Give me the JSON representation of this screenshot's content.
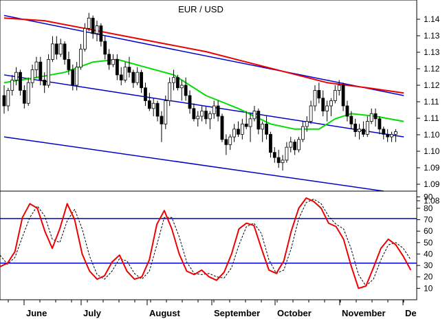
{
  "chart_data": [
    {
      "type": "candlestick",
      "title": "EUR / USD",
      "y_ticks": [
        "1.14",
        "1.13",
        "1.13",
        "1.12",
        "1.12",
        "1.11",
        "1.11",
        "1.10",
        "1.10",
        "1.09",
        "1.09",
        "1.08"
      ],
      "ylim": [
        1.077,
        1.151
      ],
      "colors": {
        "up": "#ffffff",
        "down": "#000000",
        "ma_fast": "#00dd00",
        "ma_slow": "#ee0000",
        "channel": "#0000cc"
      },
      "candles": [
        [
          1.114,
          1.118,
          1.107,
          1.11
        ],
        [
          1.11,
          1.117,
          1.108,
          1.116
        ],
        [
          1.116,
          1.122,
          1.114,
          1.12
        ],
        [
          1.12,
          1.125,
          1.118,
          1.123
        ],
        [
          1.123,
          1.124,
          1.114,
          1.116
        ],
        [
          1.116,
          1.118,
          1.109,
          1.111
        ],
        [
          1.111,
          1.121,
          1.11,
          1.119
        ],
        [
          1.119,
          1.126,
          1.117,
          1.124
        ],
        [
          1.124,
          1.129,
          1.121,
          1.127
        ],
        [
          1.127,
          1.129,
          1.118,
          1.12
        ],
        [
          1.12,
          1.123,
          1.115,
          1.118
        ],
        [
          1.118,
          1.13,
          1.117,
          1.128
        ],
        [
          1.128,
          1.137,
          1.127,
          1.134
        ],
        [
          1.134,
          1.137,
          1.128,
          1.13
        ],
        [
          1.13,
          1.136,
          1.129,
          1.134
        ],
        [
          1.134,
          1.135,
          1.126,
          1.128
        ],
        [
          1.128,
          1.131,
          1.122,
          1.124
        ],
        [
          1.124,
          1.126,
          1.116,
          1.118
        ],
        [
          1.118,
          1.127,
          1.116,
          1.125
        ],
        [
          1.125,
          1.134,
          1.124,
          1.132
        ],
        [
          1.132,
          1.142,
          1.131,
          1.14
        ],
        [
          1.14,
          1.146,
          1.139,
          1.144
        ],
        [
          1.144,
          1.145,
          1.136,
          1.138
        ],
        [
          1.138,
          1.143,
          1.135,
          1.141
        ],
        [
          1.141,
          1.142,
          1.133,
          1.135
        ],
        [
          1.135,
          1.137,
          1.128,
          1.13
        ],
        [
          1.13,
          1.132,
          1.124,
          1.126
        ],
        [
          1.126,
          1.13,
          1.125,
          1.128
        ],
        [
          1.128,
          1.13,
          1.12,
          1.122
        ],
        [
          1.122,
          1.125,
          1.118,
          1.12
        ],
        [
          1.12,
          1.127,
          1.119,
          1.125
        ],
        [
          1.125,
          1.129,
          1.121,
          1.123
        ],
        [
          1.123,
          1.124,
          1.117,
          1.119
        ],
        [
          1.119,
          1.125,
          1.118,
          1.123
        ],
        [
          1.123,
          1.124,
          1.115,
          1.117
        ],
        [
          1.117,
          1.119,
          1.11,
          1.112
        ],
        [
          1.112,
          1.115,
          1.108,
          1.109
        ],
        [
          1.109,
          1.113,
          1.106,
          1.111
        ],
        [
          1.111,
          1.112,
          1.104,
          1.106
        ],
        [
          1.106,
          1.108,
          1.096,
          1.103
        ],
        [
          1.103,
          1.114,
          1.101,
          1.112
        ],
        [
          1.112,
          1.121,
          1.11,
          1.119
        ],
        [
          1.119,
          1.124,
          1.116,
          1.121
        ],
        [
          1.121,
          1.122,
          1.116,
          1.117
        ],
        [
          1.117,
          1.12,
          1.112,
          1.118
        ],
        [
          1.118,
          1.121,
          1.112,
          1.114
        ],
        [
          1.114,
          1.116,
          1.107,
          1.109
        ],
        [
          1.109,
          1.111,
          1.104,
          1.105
        ],
        [
          1.105,
          1.108,
          1.102,
          1.106
        ],
        [
          1.106,
          1.11,
          1.104,
          1.108
        ],
        [
          1.108,
          1.11,
          1.103,
          1.105
        ],
        [
          1.105,
          1.108,
          1.101,
          1.107
        ],
        [
          1.107,
          1.112,
          1.105,
          1.11
        ],
        [
          1.11,
          1.112,
          1.104,
          1.106
        ],
        [
          1.106,
          1.107,
          1.096,
          1.097
        ],
        [
          1.097,
          1.099,
          1.091,
          1.095
        ],
        [
          1.095,
          1.099,
          1.093,
          1.098
        ],
        [
          1.098,
          1.103,
          1.096,
          1.101
        ],
        [
          1.101,
          1.104,
          1.098,
          1.099
        ],
        [
          1.099,
          1.105,
          1.097,
          1.103
        ],
        [
          1.103,
          1.108,
          1.101,
          1.102
        ],
        [
          1.102,
          1.107,
          1.096,
          1.105
        ],
        [
          1.105,
          1.11,
          1.104,
          1.108
        ],
        [
          1.108,
          1.109,
          1.099,
          1.101
        ],
        [
          1.101,
          1.104,
          1.096,
          1.103
        ],
        [
          1.103,
          1.106,
          1.097,
          1.099
        ],
        [
          1.099,
          1.1,
          1.09,
          1.092
        ],
        [
          1.092,
          1.094,
          1.088,
          1.09
        ],
        [
          1.09,
          1.093,
          1.086,
          1.088
        ],
        [
          1.088,
          1.091,
          1.085,
          1.089
        ],
        [
          1.089,
          1.096,
          1.088,
          1.094
        ],
        [
          1.094,
          1.098,
          1.092,
          1.096
        ],
        [
          1.096,
          1.097,
          1.091,
          1.093
        ],
        [
          1.093,
          1.098,
          1.092,
          1.097
        ],
        [
          1.097,
          1.104,
          1.096,
          1.102
        ],
        [
          1.102,
          1.106,
          1.1,
          1.104
        ],
        [
          1.104,
          1.112,
          1.103,
          1.11
        ],
        [
          1.11,
          1.118,
          1.108,
          1.116
        ],
        [
          1.116,
          1.119,
          1.111,
          1.113
        ],
        [
          1.113,
          1.116,
          1.106,
          1.108
        ],
        [
          1.108,
          1.112,
          1.104,
          1.11
        ],
        [
          1.11,
          1.113,
          1.106,
          1.112
        ],
        [
          1.112,
          1.118,
          1.111,
          1.116
        ],
        [
          1.116,
          1.12,
          1.114,
          1.118
        ],
        [
          1.118,
          1.119,
          1.108,
          1.11
        ],
        [
          1.11,
          1.112,
          1.104,
          1.106
        ],
        [
          1.106,
          1.108,
          1.101,
          1.103
        ],
        [
          1.103,
          1.105,
          1.098,
          1.1
        ],
        [
          1.1,
          1.103,
          1.097,
          1.101
        ],
        [
          1.101,
          1.104,
          1.098,
          1.099
        ],
        [
          1.099,
          1.106,
          1.098,
          1.104
        ],
        [
          1.104,
          1.109,
          1.103,
          1.107
        ],
        [
          1.107,
          1.109,
          1.102,
          1.105
        ],
        [
          1.105,
          1.106,
          1.099,
          1.101
        ],
        [
          1.101,
          1.102,
          1.097,
          1.099
        ],
        [
          1.099,
          1.101,
          1.096,
          1.098
        ],
        [
          1.098,
          1.1,
          1.096,
          1.099
        ],
        [
          1.099,
          1.101,
          1.096,
          1.1
        ]
      ],
      "ma_fast": [
        [
          0,
          1.119
        ],
        [
          8,
          1.121
        ],
        [
          15,
          1.123
        ],
        [
          22,
          1.127
        ],
        [
          28,
          1.128
        ],
        [
          35,
          1.125
        ],
        [
          42,
          1.122
        ],
        [
          50,
          1.114
        ],
        [
          58,
          1.109
        ],
        [
          66,
          1.103
        ],
        [
          72,
          1.101
        ],
        [
          78,
          1.101
        ],
        [
          82,
          1.105
        ],
        [
          86,
          1.107
        ],
        [
          92,
          1.106
        ],
        [
          99,
          1.104
        ]
      ],
      "ma_slow": [
        [
          0,
          1.144
        ],
        [
          10,
          1.143
        ],
        [
          20,
          1.14
        ],
        [
          30,
          1.137
        ],
        [
          40,
          1.134
        ],
        [
          50,
          1.131
        ],
        [
          60,
          1.127
        ],
        [
          70,
          1.123
        ],
        [
          80,
          1.119
        ],
        [
          90,
          1.117
        ],
        [
          99,
          1.115
        ]
      ],
      "channel_lines": [
        [
          [
            0,
            1.145
          ],
          [
            99,
            1.114
          ]
        ],
        [
          [
            0,
            1.122
          ],
          [
            99,
            1.098
          ]
        ],
        [
          [
            0,
            1.098
          ],
          [
            94,
            1.077
          ]
        ]
      ]
    },
    {
      "type": "line",
      "y_ticks": [
        "90",
        "80",
        "70",
        "60",
        "50",
        "40",
        "30",
        "20",
        "10"
      ],
      "ylim": [
        0,
        95
      ],
      "reference_lines": [
        71,
        32
      ],
      "x_labels": [
        "June",
        "July",
        "August",
        "September",
        "October",
        "November",
        "De"
      ],
      "k_line": [
        [
          0,
          29
        ],
        [
          3,
          32
        ],
        [
          6,
          42
        ],
        [
          9,
          72
        ],
        [
          12,
          84
        ],
        [
          15,
          80
        ],
        [
          18,
          60
        ],
        [
          21,
          45
        ],
        [
          24,
          62
        ],
        [
          27,
          84
        ],
        [
          30,
          70
        ],
        [
          33,
          40
        ],
        [
          36,
          25
        ],
        [
          39,
          18
        ],
        [
          42,
          21
        ],
        [
          45,
          33
        ],
        [
          48,
          39
        ],
        [
          51,
          25
        ],
        [
          54,
          18
        ],
        [
          57,
          20
        ],
        [
          60,
          35
        ],
        [
          63,
          66
        ],
        [
          66,
          78
        ],
        [
          69,
          62
        ],
        [
          72,
          40
        ],
        [
          75,
          25
        ],
        [
          78,
          22
        ],
        [
          81,
          26
        ],
        [
          84,
          20
        ],
        [
          87,
          17
        ],
        [
          90,
          24
        ],
        [
          93,
          40
        ],
        [
          96,
          62
        ],
        [
          99,
          67
        ],
        [
          102,
          65
        ],
        [
          105,
          45
        ],
        [
          108,
          26
        ],
        [
          111,
          23
        ],
        [
          114,
          34
        ],
        [
          117,
          60
        ],
        [
          120,
          80
        ],
        [
          123,
          89
        ],
        [
          126,
          86
        ],
        [
          129,
          80
        ],
        [
          132,
          67
        ],
        [
          135,
          64
        ],
        [
          138,
          53
        ],
        [
          141,
          30
        ],
        [
          144,
          10
        ],
        [
          147,
          12
        ],
        [
          150,
          28
        ],
        [
          153,
          45
        ],
        [
          156,
          53
        ],
        [
          159,
          48
        ],
        [
          162,
          38
        ],
        [
          165,
          26
        ]
      ],
      "d_line": [
        [
          0,
          39
        ],
        [
          3,
          31
        ],
        [
          6,
          37
        ],
        [
          9,
          55
        ],
        [
          12,
          72
        ],
        [
          15,
          82
        ],
        [
          18,
          73
        ],
        [
          21,
          53
        ],
        [
          24,
          50
        ],
        [
          27,
          69
        ],
        [
          30,
          79
        ],
        [
          33,
          62
        ],
        [
          36,
          38
        ],
        [
          39,
          22
        ],
        [
          42,
          18
        ],
        [
          45,
          25
        ],
        [
          48,
          36
        ],
        [
          51,
          34
        ],
        [
          54,
          23
        ],
        [
          57,
          18
        ],
        [
          60,
          25
        ],
        [
          63,
          48
        ],
        [
          66,
          72
        ],
        [
          69,
          72
        ],
        [
          72,
          55
        ],
        [
          75,
          33
        ],
        [
          78,
          23
        ],
        [
          81,
          22
        ],
        [
          84,
          23
        ],
        [
          87,
          20
        ],
        [
          90,
          19
        ],
        [
          93,
          28
        ],
        [
          96,
          48
        ],
        [
          99,
          64
        ],
        [
          102,
          67
        ],
        [
          105,
          58
        ],
        [
          108,
          35
        ],
        [
          111,
          23
        ],
        [
          114,
          26
        ],
        [
          117,
          45
        ],
        [
          120,
          71
        ],
        [
          123,
          85
        ],
        [
          126,
          88
        ],
        [
          129,
          84
        ],
        [
          132,
          73
        ],
        [
          135,
          66
        ],
        [
          138,
          62
        ],
        [
          141,
          45
        ],
        [
          144,
          22
        ],
        [
          147,
          12
        ],
        [
          150,
          18
        ],
        [
          153,
          35
        ],
        [
          156,
          48
        ],
        [
          159,
          50
        ],
        [
          162,
          45
        ],
        [
          165,
          35
        ]
      ]
    }
  ]
}
